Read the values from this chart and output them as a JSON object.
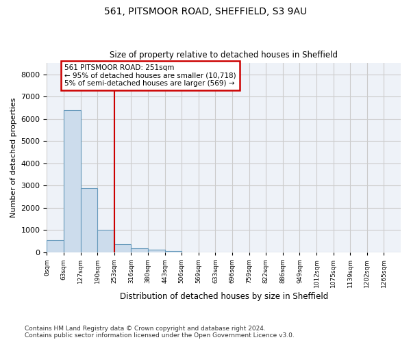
{
  "title1": "561, PITSMOOR ROAD, SHEFFIELD, S3 9AU",
  "title2": "Size of property relative to detached houses in Sheffield",
  "xlabel": "Distribution of detached houses by size in Sheffield",
  "ylabel": "Number of detached properties",
  "footer": "Contains HM Land Registry data © Crown copyright and database right 2024.\nContains public sector information licensed under the Open Government Licence v3.0.",
  "categories": [
    "0sqm",
    "63sqm",
    "127sqm",
    "190sqm",
    "253sqm",
    "316sqm",
    "380sqm",
    "443sqm",
    "506sqm",
    "569sqm",
    "633sqm",
    "696sqm",
    "759sqm",
    "822sqm",
    "886sqm",
    "949sqm",
    "1012sqm",
    "1075sqm",
    "1139sqm",
    "1202sqm",
    "1265sqm"
  ],
  "bar_values": [
    550,
    6400,
    2900,
    1000,
    380,
    180,
    120,
    70,
    0,
    0,
    0,
    0,
    0,
    0,
    0,
    0,
    0,
    0,
    0,
    0,
    0
  ],
  "bar_color": "#ccdcec",
  "bar_edge_color": "#6699bb",
  "vline_x_bin": 4,
  "vline_color": "#cc0000",
  "annotation_title": "561 PITSMOOR ROAD: 251sqm",
  "annotation_line1": "← 95% of detached houses are smaller (10,718)",
  "annotation_line2": "5% of semi-detached houses are larger (569) →",
  "annotation_box_color": "#ffffff",
  "annotation_box_edge": "#cc0000",
  "ylim": [
    0,
    8500
  ],
  "yticks": [
    0,
    1000,
    2000,
    3000,
    4000,
    5000,
    6000,
    7000,
    8000
  ],
  "grid_color": "#cccccc",
  "bg_color": "#eef2f8",
  "bin_width": 63,
  "num_bins": 21
}
